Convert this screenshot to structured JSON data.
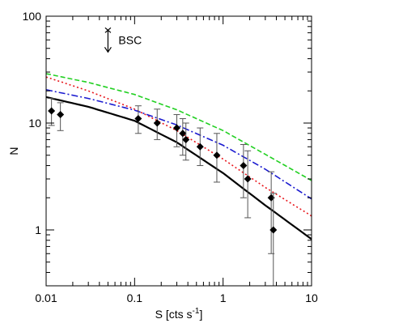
{
  "chart_data": {
    "type": "line",
    "title": "",
    "xlabel": "S [cts s",
    "xlabel_sup": "-1",
    "xlabel_end": "]",
    "ylabel": "N",
    "x_scale": "log",
    "y_scale": "log",
    "xlim": [
      0.01,
      10
    ],
    "ylim": [
      0.3,
      100
    ],
    "x_ticks": [
      {
        "value": 0.01,
        "label": "0.01"
      },
      {
        "value": 0.1,
        "label": "0.1"
      },
      {
        "value": 1,
        "label": "1"
      },
      {
        "value": 10,
        "label": "10"
      }
    ],
    "y_ticks": [
      {
        "value": 1,
        "label": "1"
      },
      {
        "value": 10,
        "label": "10"
      },
      {
        "value": 100,
        "label": "100"
      }
    ],
    "grid": false,
    "annotation": {
      "text": "BSC",
      "x": 0.05,
      "y": 60
    },
    "series": [
      {
        "kind": "data-points",
        "marker": "diamond",
        "color": "#000000",
        "points": [
          {
            "x": 0.0115,
            "y": 13,
            "ylo": 9.5,
            "yhi": 17
          },
          {
            "x": 0.0145,
            "y": 12,
            "ylo": 8.5,
            "yhi": 15.5
          },
          {
            "x": 0.11,
            "y": 11,
            "ylo": 8,
            "yhi": 14.5
          },
          {
            "x": 0.18,
            "y": 10,
            "ylo": 7,
            "yhi": 13.5
          },
          {
            "x": 0.3,
            "y": 9,
            "ylo": 6,
            "yhi": 12
          },
          {
            "x": 0.35,
            "y": 8,
            "ylo": 5,
            "yhi": 11
          },
          {
            "x": 0.38,
            "y": 7,
            "ylo": 4.5,
            "yhi": 10
          },
          {
            "x": 0.55,
            "y": 6,
            "ylo": 4,
            "yhi": 9
          },
          {
            "x": 0.85,
            "y": 5,
            "ylo": 2.8,
            "yhi": 8
          },
          {
            "x": 1.7,
            "y": 4,
            "ylo": 2,
            "yhi": 6.3
          },
          {
            "x": 1.9,
            "y": 3,
            "ylo": 1.3,
            "yhi": 5.5
          },
          {
            "x": 3.5,
            "y": 2,
            "ylo": 0.6,
            "yhi": 3.5
          },
          {
            "x": 3.7,
            "y": 1,
            "ylo": 0.3,
            "yhi": 2.2
          }
        ]
      },
      {
        "kind": "curve",
        "style": "solid",
        "color": "#000000",
        "width": 2.2,
        "x": [
          0.01,
          0.03,
          0.1,
          0.3,
          1,
          3,
          10
        ],
        "y": [
          17.5,
          14.2,
          10.5,
          6.6,
          3.4,
          1.7,
          0.82
        ]
      },
      {
        "kind": "curve",
        "style": "dotted",
        "color": "#e8141a",
        "width": 1.6,
        "x": [
          0.01,
          0.03,
          0.1,
          0.3,
          1,
          3,
          10
        ],
        "y": [
          27,
          20,
          13.5,
          8.5,
          4.6,
          2.5,
          1.35
        ]
      },
      {
        "kind": "curve",
        "style": "dashdot",
        "color": "#1b1bd0",
        "width": 1.6,
        "x": [
          0.01,
          0.03,
          0.1,
          0.3,
          1,
          3,
          10
        ],
        "y": [
          20.5,
          17,
          13.2,
          9.6,
          6.2,
          3.7,
          1.95
        ]
      },
      {
        "kind": "curve",
        "style": "dashed",
        "color": "#22d022",
        "width": 1.6,
        "x": [
          0.01,
          0.03,
          0.1,
          0.3,
          1,
          3,
          10
        ],
        "y": [
          29,
          24,
          18.5,
          13.3,
          8.5,
          5.1,
          2.9
        ]
      }
    ]
  }
}
